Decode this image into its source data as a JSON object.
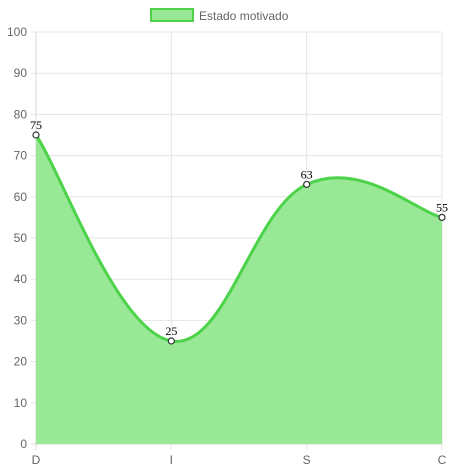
{
  "chart_data": {
    "type": "area",
    "categories": [
      "D",
      "I",
      "S",
      "C"
    ],
    "series": [
      {
        "name": "Estado motivado",
        "values": [
          75,
          25,
          63,
          55
        ]
      }
    ],
    "ylim": [
      0,
      100
    ],
    "yticks": [
      0,
      10,
      20,
      30,
      40,
      50,
      60,
      70,
      80,
      90,
      100
    ],
    "grid": true,
    "legend_position": "top",
    "colors": {
      "fill": "#98e896",
      "line": "#4cd34a",
      "grid": "#e5e5e5",
      "axis": "#d8d8d8",
      "point_fill": "#ffffff",
      "point_stroke": "#333333"
    }
  }
}
